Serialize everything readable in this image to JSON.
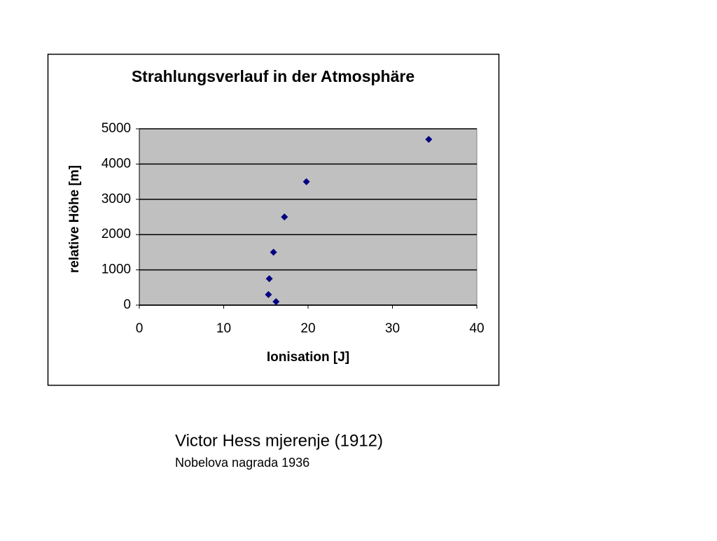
{
  "chart_data": {
    "type": "scatter",
    "title": "Strahlungsverlauf in der Atmosphäre",
    "x_label": "Ionisation [J]",
    "y_label": "relative Höhe [m]",
    "x": [
      34.3,
      19.8,
      17.2,
      15.9,
      15.4,
      15.3,
      16.2
    ],
    "values": [
      4700,
      3500,
      2500,
      1500,
      750,
      300,
      100
    ],
    "color": "#000080",
    "plot_background": "#c0c0c0",
    "xlim": [
      0,
      40
    ],
    "xticks": [
      0,
      10,
      20,
      30,
      40
    ],
    "ylim": [
      0,
      5000
    ],
    "yticks": [
      0,
      1000,
      2000,
      3000,
      4000,
      5000
    ],
    "grid": true
  },
  "caption": {
    "title": "Victor Hess mjerenje (1912)",
    "subtitle": "Nobelova nagrada 1936"
  }
}
